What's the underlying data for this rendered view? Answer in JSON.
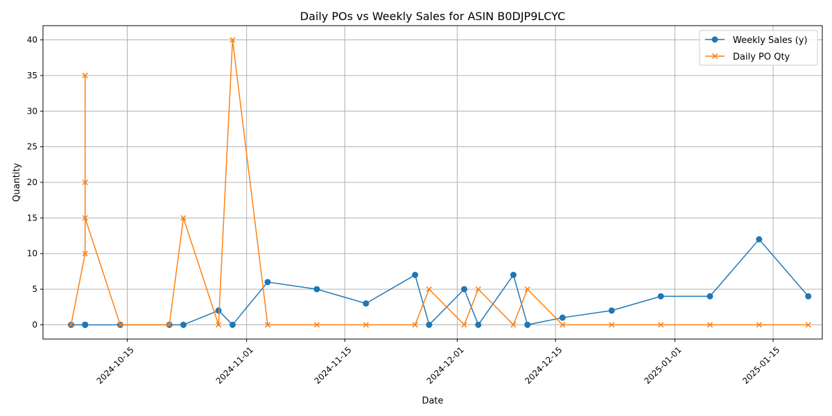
{
  "chart_data": {
    "type": "line",
    "title": "Daily POs vs Weekly Sales for ASIN B0DJP9LCYC",
    "xlabel": "Date",
    "ylabel": "Quantity",
    "xlim": [
      "2024-10-03",
      "2025-01-22"
    ],
    "ylim": [
      -2,
      42
    ],
    "x_ticks": [
      "2024-10-15",
      "2024-11-01",
      "2024-11-15",
      "2024-12-01",
      "2024-12-15",
      "2025-01-01",
      "2025-01-15"
    ],
    "y_ticks": [
      0,
      5,
      10,
      15,
      20,
      25,
      30,
      35,
      40
    ],
    "grid": true,
    "legend_position": "top-right",
    "series": [
      {
        "name": "Weekly Sales (y)",
        "color": "#1f77b4",
        "marker": "circle",
        "points": [
          {
            "x": "2024-10-07",
            "y": 0
          },
          {
            "x": "2024-10-09",
            "y": 0
          },
          {
            "x": "2024-10-09",
            "y": 0
          },
          {
            "x": "2024-10-09",
            "y": 0
          },
          {
            "x": "2024-10-09",
            "y": 0
          },
          {
            "x": "2024-10-14",
            "y": 0
          },
          {
            "x": "2024-10-21",
            "y": 0
          },
          {
            "x": "2024-10-23",
            "y": 0
          },
          {
            "x": "2024-10-28",
            "y": 2
          },
          {
            "x": "2024-10-30",
            "y": 0
          },
          {
            "x": "2024-11-04",
            "y": 6
          },
          {
            "x": "2024-11-11",
            "y": 5
          },
          {
            "x": "2024-11-18",
            "y": 3
          },
          {
            "x": "2024-11-25",
            "y": 7
          },
          {
            "x": "2024-11-27",
            "y": 0
          },
          {
            "x": "2024-12-02",
            "y": 5
          },
          {
            "x": "2024-12-04",
            "y": 0
          },
          {
            "x": "2024-12-09",
            "y": 7
          },
          {
            "x": "2024-12-11",
            "y": 0
          },
          {
            "x": "2024-12-16",
            "y": 1
          },
          {
            "x": "2024-12-23",
            "y": 2
          },
          {
            "x": "2024-12-30",
            "y": 4
          },
          {
            "x": "2025-01-06",
            "y": 4
          },
          {
            "x": "2025-01-13",
            "y": 12
          },
          {
            "x": "2025-01-20",
            "y": 4
          }
        ]
      },
      {
        "name": "Daily PO Qty",
        "color": "#ff7f0e",
        "marker": "x",
        "points": [
          {
            "x": "2024-10-07",
            "y": 0
          },
          {
            "x": "2024-10-09",
            "y": 10
          },
          {
            "x": "2024-10-09",
            "y": 35
          },
          {
            "x": "2024-10-09",
            "y": 20
          },
          {
            "x": "2024-10-09",
            "y": 15
          },
          {
            "x": "2024-10-14",
            "y": 0
          },
          {
            "x": "2024-10-21",
            "y": 0
          },
          {
            "x": "2024-10-23",
            "y": 15
          },
          {
            "x": "2024-10-28",
            "y": 0
          },
          {
            "x": "2024-10-30",
            "y": 40
          },
          {
            "x": "2024-11-04",
            "y": 0
          },
          {
            "x": "2024-11-11",
            "y": 0
          },
          {
            "x": "2024-11-18",
            "y": 0
          },
          {
            "x": "2024-11-25",
            "y": 0
          },
          {
            "x": "2024-11-27",
            "y": 5
          },
          {
            "x": "2024-12-02",
            "y": 0
          },
          {
            "x": "2024-12-04",
            "y": 5
          },
          {
            "x": "2024-12-09",
            "y": 0
          },
          {
            "x": "2024-12-11",
            "y": 5
          },
          {
            "x": "2024-12-16",
            "y": 0
          },
          {
            "x": "2024-12-23",
            "y": 0
          },
          {
            "x": "2024-12-30",
            "y": 0
          },
          {
            "x": "2025-01-06",
            "y": 0
          },
          {
            "x": "2025-01-13",
            "y": 0
          },
          {
            "x": "2025-01-20",
            "y": 0
          }
        ]
      }
    ]
  }
}
